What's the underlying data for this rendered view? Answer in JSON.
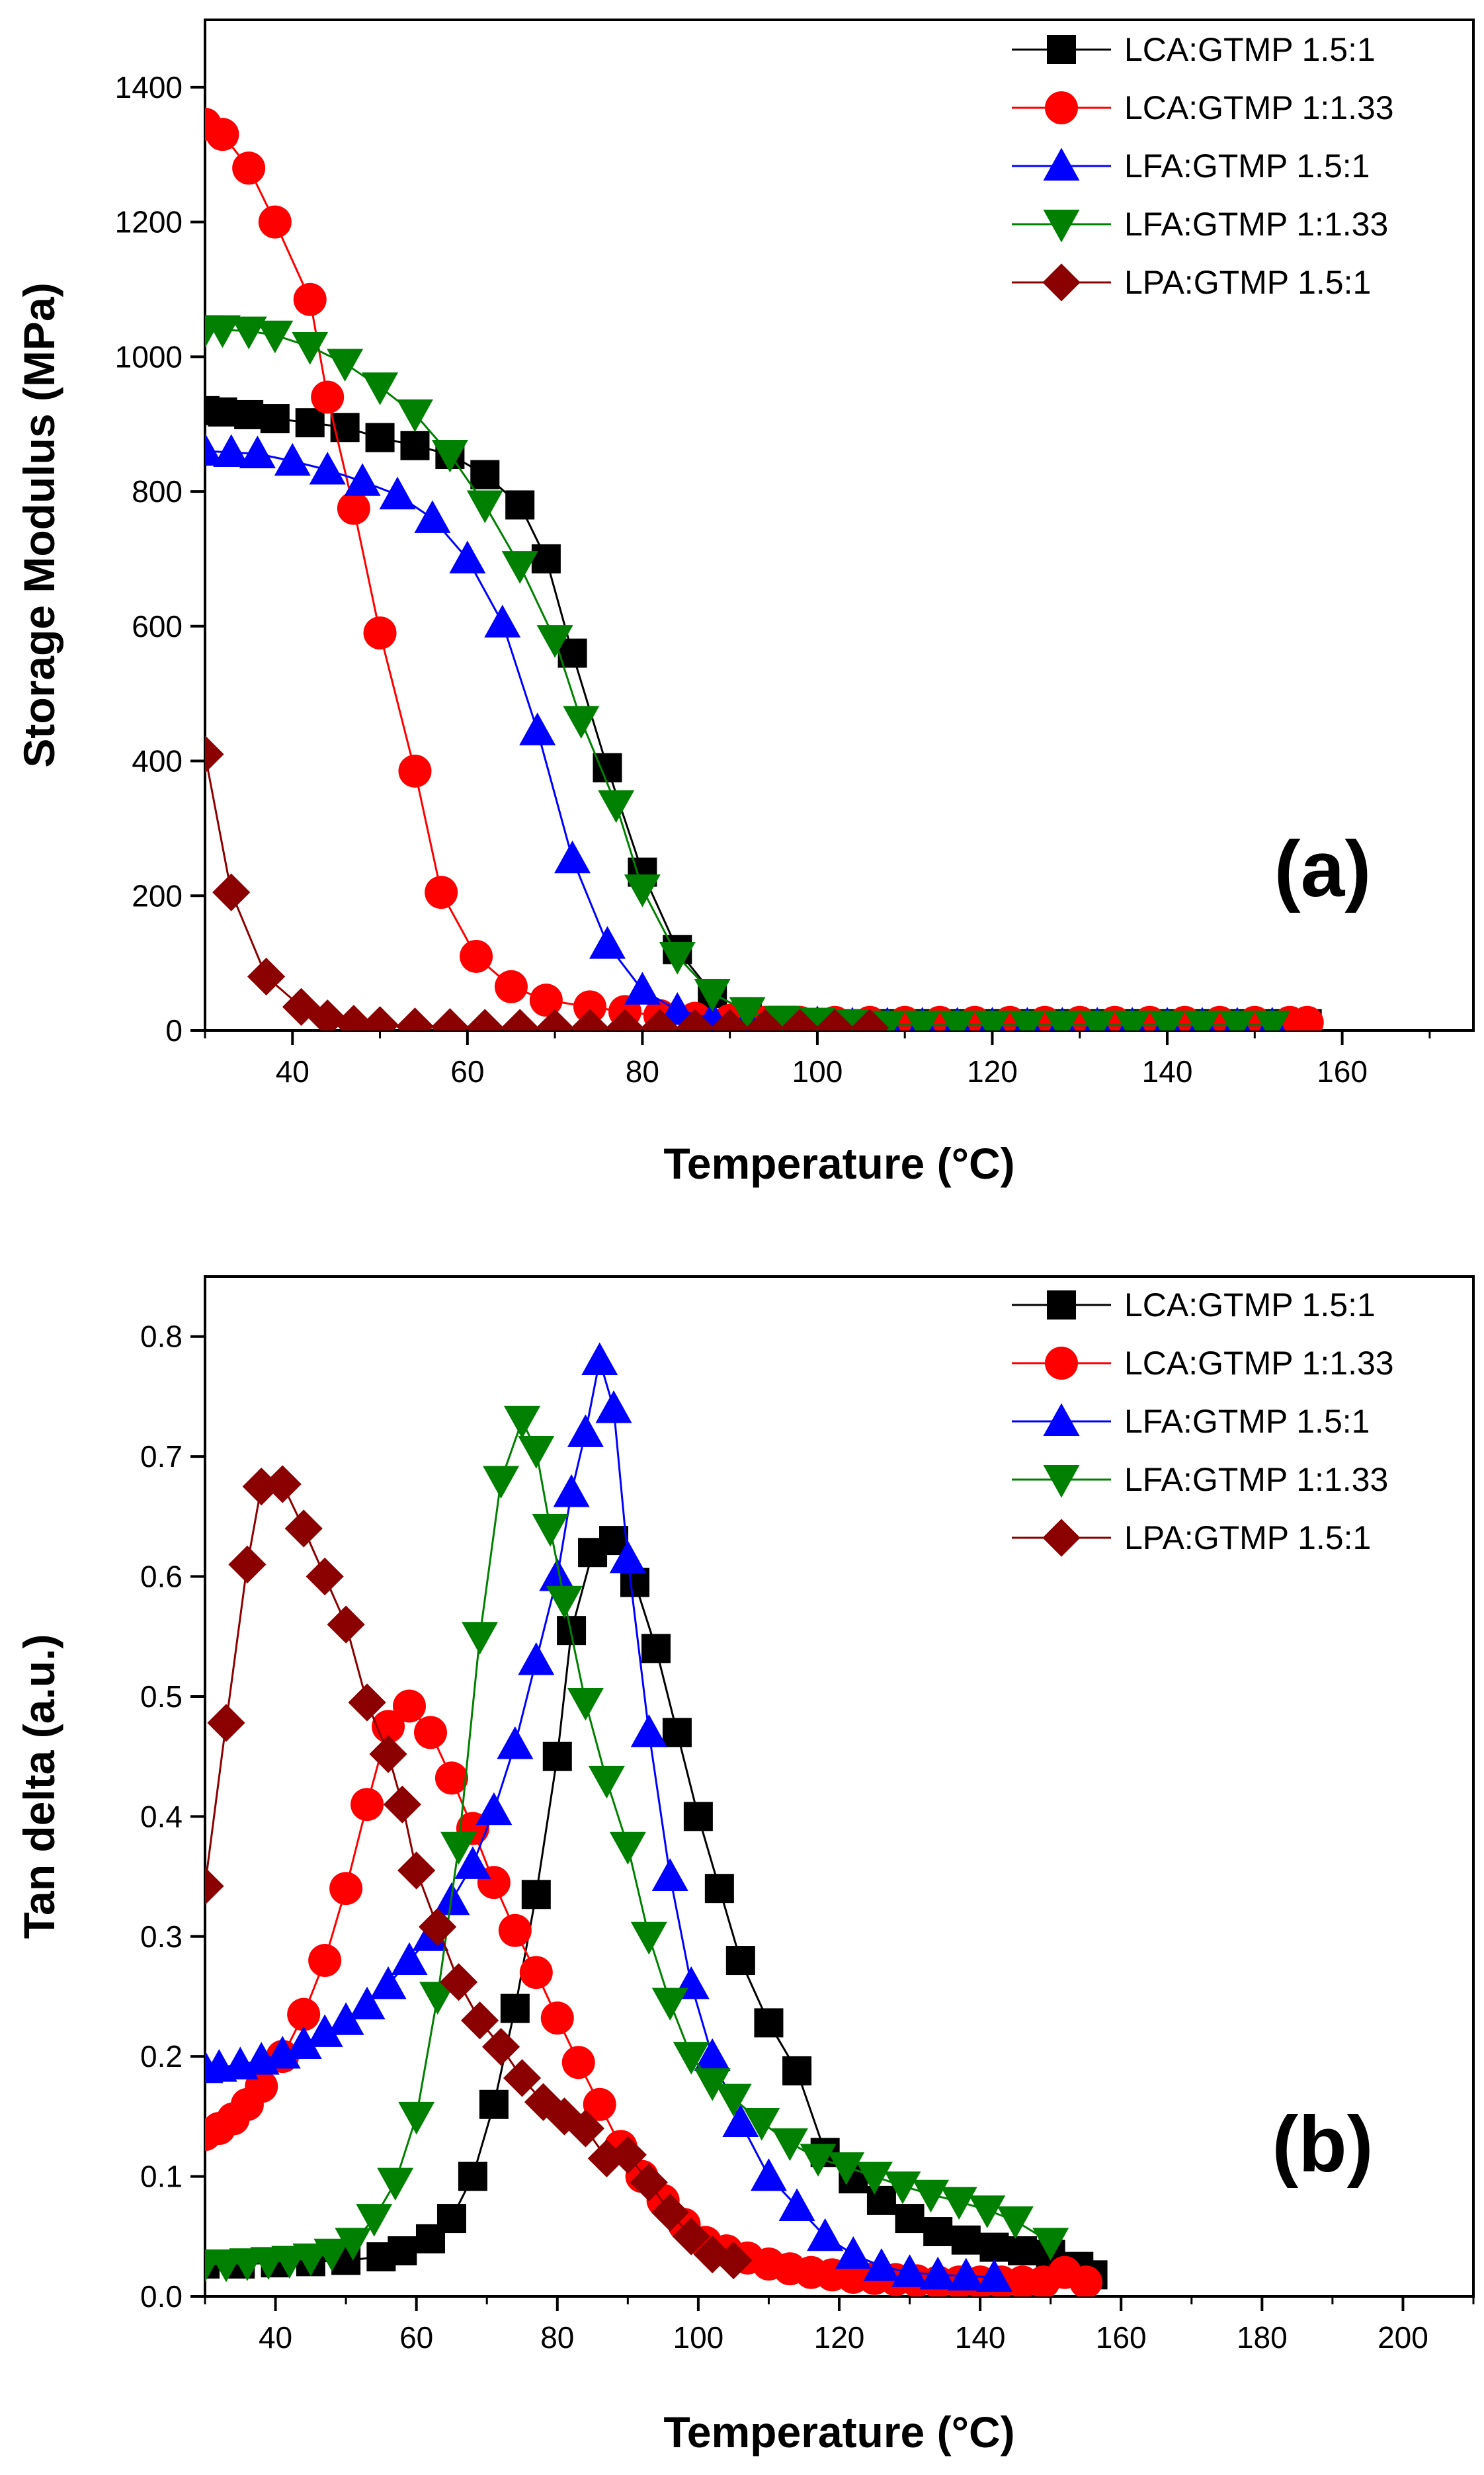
{
  "chart_data": [
    {
      "type": "line",
      "panel_label": "(a)",
      "xlabel": "Temperature (°C)",
      "ylabel": "Storage Modulus (MPa)",
      "xlim": [
        30,
        175
      ],
      "ylim": [
        0,
        1500
      ],
      "xticks": [
        40,
        60,
        80,
        100,
        120,
        140,
        160
      ],
      "yticks": [
        0,
        200,
        400,
        600,
        800,
        1000,
        1200,
        1400
      ],
      "legend_position": "top-right",
      "series": [
        {
          "name": "LCA:GTMP 1.5:1",
          "color": "#000000",
          "marker": "square",
          "x": [
            30,
            32,
            35,
            38,
            42,
            46,
            50,
            54,
            58,
            62,
            66,
            69,
            72,
            76,
            80,
            84,
            88,
            92,
            96,
            100,
            104,
            108,
            112,
            116,
            120,
            124,
            128,
            132,
            136,
            140,
            144,
            148,
            152,
            156
          ],
          "y": [
            920,
            918,
            914,
            908,
            902,
            895,
            880,
            868,
            855,
            825,
            780,
            700,
            560,
            390,
            235,
            120,
            55,
            28,
            15,
            12,
            10,
            10,
            10,
            10,
            10,
            10,
            10,
            10,
            10,
            10,
            10,
            10,
            10,
            10
          ]
        },
        {
          "name": "LCA:GTMP 1:1.33",
          "color": "#ff0000",
          "marker": "circle",
          "x": [
            30,
            32,
            35,
            38,
            42,
            44,
            47,
            50,
            54,
            57,
            61,
            65,
            69,
            74,
            78,
            82,
            86,
            90,
            94,
            98,
            102,
            106,
            110,
            114,
            118,
            122,
            126,
            130,
            134,
            138,
            142,
            146,
            150,
            154,
            156
          ],
          "y": [
            1345,
            1330,
            1280,
            1200,
            1085,
            940,
            775,
            590,
            385,
            205,
            110,
            65,
            45,
            35,
            28,
            22,
            18,
            15,
            12,
            12,
            12,
            12,
            12,
            12,
            12,
            12,
            12,
            12,
            12,
            12,
            12,
            12,
            12,
            12,
            12
          ]
        },
        {
          "name": "LFA:GTMP 1.5:1",
          "color": "#0000ff",
          "marker": "triangle-up",
          "x": [
            30,
            33,
            36,
            40,
            44,
            48,
            52,
            56,
            60,
            64,
            68,
            72,
            76,
            80,
            84,
            88,
            92,
            96,
            100,
            104,
            108,
            112,
            116,
            120,
            124,
            128,
            132,
            136,
            140,
            144,
            148,
            152
          ],
          "y": [
            860,
            858,
            856,
            845,
            832,
            815,
            795,
            760,
            700,
            605,
            445,
            255,
            128,
            60,
            30,
            18,
            12,
            10,
            10,
            8,
            8,
            8,
            8,
            8,
            8,
            8,
            8,
            8,
            8,
            8,
            8,
            8
          ]
        },
        {
          "name": "LFA:GTMP 1:1.33",
          "color": "#008000",
          "marker": "triangle-down",
          "x": [
            30,
            32,
            35,
            38,
            42,
            46,
            50,
            54,
            58,
            62,
            66,
            70,
            73,
            77,
            80,
            84,
            88,
            92,
            96,
            100,
            104,
            108,
            112,
            116,
            120,
            124,
            128,
            132,
            136,
            140,
            144,
            148,
            152
          ],
          "y": [
            1040,
            1040,
            1038,
            1032,
            1015,
            990,
            955,
            915,
            855,
            780,
            690,
            580,
            460,
            335,
            210,
            110,
            55,
            28,
            15,
            12,
            10,
            8,
            8,
            8,
            8,
            8,
            8,
            8,
            8,
            8,
            8,
            8,
            8
          ]
        },
        {
          "name": "LPA:GTMP 1.5:1",
          "color": "#8b0000",
          "marker": "diamond",
          "x": [
            30,
            33,
            37,
            41,
            44,
            47,
            50,
            54,
            58,
            62,
            66,
            70,
            74,
            78,
            82,
            86,
            90,
            94,
            98,
            102,
            106
          ],
          "y": [
            410,
            205,
            80,
            35,
            18,
            10,
            8,
            6,
            5,
            4,
            4,
            4,
            4,
            4,
            4,
            4,
            4,
            4,
            4,
            4,
            4
          ]
        }
      ]
    },
    {
      "type": "line",
      "panel_label": "(b)",
      "xlabel": "Temperature (°C)",
      "ylabel": "Tan delta (a.u.)",
      "xlim": [
        30,
        210
      ],
      "ylim": [
        0,
        0.85
      ],
      "xticks": [
        40,
        60,
        80,
        100,
        120,
        140,
        160,
        180,
        200
      ],
      "yticks": [
        0.0,
        0.1,
        0.2,
        0.3,
        0.4,
        0.5,
        0.6,
        0.7,
        0.8
      ],
      "legend_position": "top-right",
      "series": [
        {
          "name": "LCA:GTMP 1.5:1",
          "color": "#000000",
          "marker": "square",
          "x": [
            30,
            35,
            40,
            45,
            50,
            55,
            58,
            62,
            65,
            68,
            71,
            74,
            77,
            80,
            82,
            85,
            88,
            91,
            94,
            97,
            100,
            103,
            106,
            110,
            114,
            118,
            122,
            126,
            130,
            134,
            138,
            142,
            146,
            150,
            154,
            156
          ],
          "y": [
            0.027,
            0.027,
            0.028,
            0.029,
            0.03,
            0.033,
            0.038,
            0.048,
            0.065,
            0.1,
            0.16,
            0.24,
            0.335,
            0.45,
            0.555,
            0.62,
            0.63,
            0.595,
            0.54,
            0.47,
            0.4,
            0.34,
            0.28,
            0.228,
            0.188,
            0.12,
            0.098,
            0.08,
            0.065,
            0.054,
            0.047,
            0.041,
            0.038,
            0.035,
            0.025,
            0.018
          ]
        },
        {
          "name": "LCA:GTMP 1:1.33",
          "color": "#ff0000",
          "marker": "circle",
          "x": [
            30,
            32,
            34,
            36,
            38,
            41,
            44,
            47,
            50,
            53,
            56,
            59,
            62,
            65,
            68,
            71,
            74,
            77,
            80,
            83,
            86,
            89,
            92,
            95,
            98,
            101,
            104,
            107,
            110,
            113,
            116,
            119,
            122,
            125,
            128,
            131,
            134,
            137,
            140,
            143,
            146,
            149,
            152,
            155
          ],
          "y": [
            0.135,
            0.14,
            0.148,
            0.16,
            0.175,
            0.2,
            0.235,
            0.28,
            0.34,
            0.41,
            0.475,
            0.492,
            0.47,
            0.432,
            0.39,
            0.345,
            0.305,
            0.27,
            0.232,
            0.195,
            0.16,
            0.125,
            0.1,
            0.08,
            0.06,
            0.045,
            0.038,
            0.032,
            0.027,
            0.023,
            0.02,
            0.018,
            0.016,
            0.015,
            0.014,
            0.013,
            0.012,
            0.012,
            0.012,
            0.012,
            0.012,
            0.012,
            0.02,
            0.012
          ]
        },
        {
          "name": "LFA:GTMP 1.5:1",
          "color": "#0000ff",
          "marker": "triangle-up",
          "x": [
            30,
            32,
            35,
            38,
            41,
            44,
            47,
            50,
            53,
            56,
            59,
            62,
            65,
            68,
            71,
            74,
            77,
            80,
            82,
            84,
            86,
            88,
            90,
            93,
            96,
            99,
            102,
            106,
            110,
            114,
            118,
            122,
            126,
            130,
            134,
            138,
            142
          ],
          "y": [
            0.19,
            0.191,
            0.193,
            0.197,
            0.202,
            0.21,
            0.22,
            0.23,
            0.243,
            0.26,
            0.28,
            0.3,
            0.33,
            0.36,
            0.405,
            0.46,
            0.53,
            0.6,
            0.67,
            0.72,
            0.78,
            0.74,
            0.615,
            0.47,
            0.35,
            0.26,
            0.2,
            0.145,
            0.1,
            0.075,
            0.05,
            0.035,
            0.025,
            0.02,
            0.018,
            0.017,
            0.016
          ]
        },
        {
          "name": "LFA:GTMP 1:1.33",
          "color": "#008000",
          "marker": "triangle-down",
          "x": [
            30,
            33,
            36,
            39,
            42,
            45,
            48,
            51,
            54,
            57,
            60,
            63,
            66,
            69,
            72,
            75,
            77,
            79,
            81,
            84,
            87,
            90,
            93,
            96,
            99,
            102,
            105,
            109,
            113,
            117,
            121,
            125,
            129,
            133,
            137,
            141,
            145,
            150
          ],
          "y": [
            0.027,
            0.027,
            0.028,
            0.029,
            0.03,
            0.032,
            0.036,
            0.045,
            0.065,
            0.095,
            0.15,
            0.25,
            0.375,
            0.55,
            0.68,
            0.73,
            0.705,
            0.64,
            0.58,
            0.495,
            0.43,
            0.375,
            0.3,
            0.245,
            0.2,
            0.178,
            0.165,
            0.145,
            0.128,
            0.115,
            0.108,
            0.1,
            0.092,
            0.085,
            0.079,
            0.072,
            0.063,
            0.045
          ]
        },
        {
          "name": "LPA:GTMP 1.5:1",
          "color": "#8b0000",
          "marker": "diamond",
          "x": [
            30,
            33,
            36,
            38,
            41,
            44,
            47,
            50,
            53,
            56,
            58,
            60,
            63,
            66,
            69,
            72,
            75,
            78,
            81,
            84,
            87,
            90,
            93,
            96,
            99,
            102,
            105
          ],
          "y": [
            0.342,
            0.478,
            0.61,
            0.675,
            0.677,
            0.64,
            0.6,
            0.56,
            0.495,
            0.452,
            0.41,
            0.355,
            0.308,
            0.262,
            0.23,
            0.208,
            0.182,
            0.162,
            0.15,
            0.14,
            0.115,
            0.118,
            0.095,
            0.07,
            0.05,
            0.035,
            0.03
          ]
        }
      ]
    }
  ]
}
